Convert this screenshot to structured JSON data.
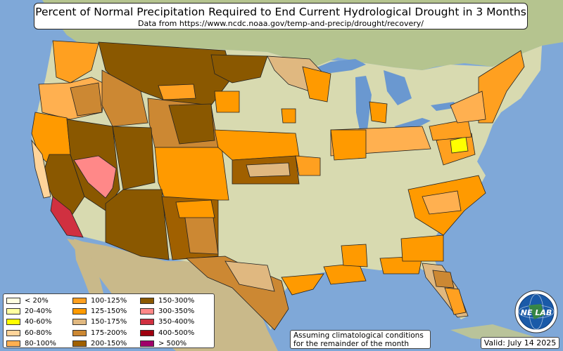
{
  "header": {
    "title": "Percent of Normal Precipitation Required to End Current Hydrological Drought in 3 Months",
    "subtitle": "Data from https://www.ncdc.noaa.gov/temp-and-precip/drought/recovery/"
  },
  "legend": {
    "col1": [
      {
        "label": "< 20%",
        "color": "#ffffe0"
      },
      {
        "label": "20-40%",
        "color": "#ffffa0"
      },
      {
        "label": "40-60%",
        "color": "#ffff00"
      },
      {
        "label": "60-80%",
        "color": "#ffd49a"
      },
      {
        "label": "80-100%",
        "color": "#ffb050"
      }
    ],
    "col2": [
      {
        "label": "100-125%",
        "color": "#ffa020"
      },
      {
        "label": "125-150%",
        "color": "#ff9a00"
      },
      {
        "label": "150-175%",
        "color": "#e0b880"
      },
      {
        "label": "175-200%",
        "color": "#cc8833"
      },
      {
        "label": "200-150%",
        "color": "#a06000"
      }
    ],
    "col3": [
      {
        "label": "150-300%",
        "color": "#8a5800"
      },
      {
        "label": "300-350%",
        "color": "#ff8888"
      },
      {
        "label": "350-400%",
        "color": "#d03040"
      },
      {
        "label": "400-500%",
        "color": "#a00010"
      },
      {
        "label": "> 500%",
        "color": "#a0006a"
      }
    ]
  },
  "note": {
    "line1": "Assuming climatological conditions",
    "line2": "for the remainder of the month"
  },
  "valid": "Valid: July 14 2025",
  "logo": {
    "text": "NE LAB",
    "icon": "globe-icon"
  },
  "colors": {
    "ocean": "#7fa8d8",
    "land": "#d8dab0",
    "lake": "#6a98d0"
  }
}
